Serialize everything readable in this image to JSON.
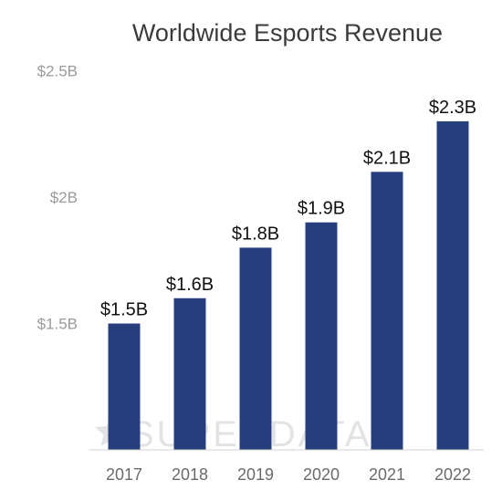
{
  "chart_data": {
    "type": "bar",
    "title": "Worldwide Esports Revenue",
    "categories": [
      "2017",
      "2018",
      "2019",
      "2020",
      "2021",
      "2022"
    ],
    "values": [
      1.5,
      1.6,
      1.8,
      1.9,
      2.1,
      2.3
    ],
    "data_labels": [
      "$1.5B",
      "$1.6B",
      "$1.8B",
      "$1.9B",
      "$2.1B",
      "$2.3B"
    ],
    "y_ticks": [
      {
        "value": 1.5,
        "label": "$1.5B"
      },
      {
        "value": 2.0,
        "label": "$2B"
      },
      {
        "value": 2.5,
        "label": "$2.5B"
      }
    ],
    "ylim": [
      1.0,
      2.5
    ],
    "xlabel": "",
    "ylabel": "",
    "grid": false,
    "bar_color": "#263f7c",
    "watermark": "SUPERDATA"
  }
}
